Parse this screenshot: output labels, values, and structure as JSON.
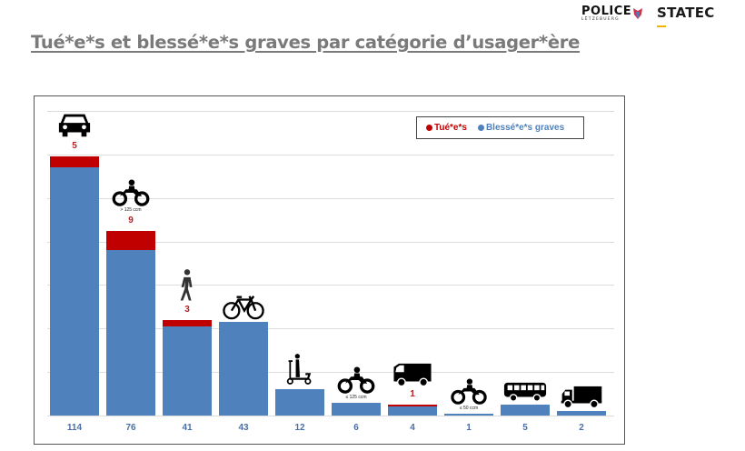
{
  "header": {
    "logo_police_text": "POLICE",
    "logo_police_sub": "LËTZEBUERG",
    "logo_statec_text": "STATEC",
    "title": "Tué*e*s et blessé*e*s graves par catégorie d’usager*ère"
  },
  "colors": {
    "killed": "#c00000",
    "seriously_injured": "#4f81bd",
    "killed_label": "#b32025",
    "category_label": "#4a6fa5",
    "title": "#7a7a7a",
    "statec_accent": "#f0b400"
  },
  "legend": {
    "killed_label": "Tué*e*s",
    "injured_label": "Blessé*e*s graves"
  },
  "categories": [
    {
      "icon": "car-icon",
      "sub": "",
      "killed": 5,
      "injured": 114
    },
    {
      "icon": "motorcycle-icon",
      "sub": "> 125 ccm",
      "killed": 9,
      "injured": 76
    },
    {
      "icon": "pedestrian-icon",
      "sub": "",
      "killed": 3,
      "injured": 41
    },
    {
      "icon": "bicycle-icon",
      "sub": "",
      "killed": 0,
      "injured": 43
    },
    {
      "icon": "e-scooter-icon",
      "sub": "",
      "killed": 0,
      "injured": 12
    },
    {
      "icon": "motorcycle-icon",
      "sub": "≤ 125 ccm",
      "killed": 0,
      "injured": 6
    },
    {
      "icon": "van-icon",
      "sub": "",
      "killed": 1,
      "injured": 4
    },
    {
      "icon": "moped-icon",
      "sub": "≤ 50 ccm",
      "killed": 0,
      "injured": 1
    },
    {
      "icon": "bus-icon",
      "sub": "",
      "killed": 0,
      "injured": 5
    },
    {
      "icon": "truck-icon",
      "sub": "",
      "killed": 0,
      "injured": 2
    }
  ],
  "chart_data": {
    "type": "bar",
    "stacked": true,
    "title": "Tué*e*s et blessé*e*s graves par catégorie d’usager*ère",
    "categories": [
      "Voiture",
      "Moto > 125 ccm",
      "Piéton",
      "Vélo",
      "Trottinette",
      "Moto ≤ 125 ccm",
      "Camionnette",
      "Cyclomoteur ≤ 50 ccm",
      "Bus",
      "Camion"
    ],
    "series": [
      {
        "name": "Blessé*e*s graves",
        "color": "#4f81bd",
        "values": [
          114,
          76,
          41,
          43,
          12,
          6,
          4,
          1,
          5,
          2
        ]
      },
      {
        "name": "Tué*e*s",
        "color": "#c00000",
        "values": [
          5,
          9,
          3,
          0,
          0,
          0,
          1,
          0,
          0,
          0
        ]
      }
    ],
    "category_labels": [
      "114",
      "76",
      "41",
      "43",
      "12",
      "6",
      "4",
      "1",
      "5",
      "2"
    ],
    "killed_labels": [
      "5",
      "9",
      "3",
      "",
      "",
      "",
      "1",
      "",
      "",
      ""
    ],
    "xlabel": "",
    "ylabel": "",
    "ylim": [
      0,
      140
    ],
    "grid": true,
    "y_axis_visible": false,
    "legend_position": "top-right"
  }
}
